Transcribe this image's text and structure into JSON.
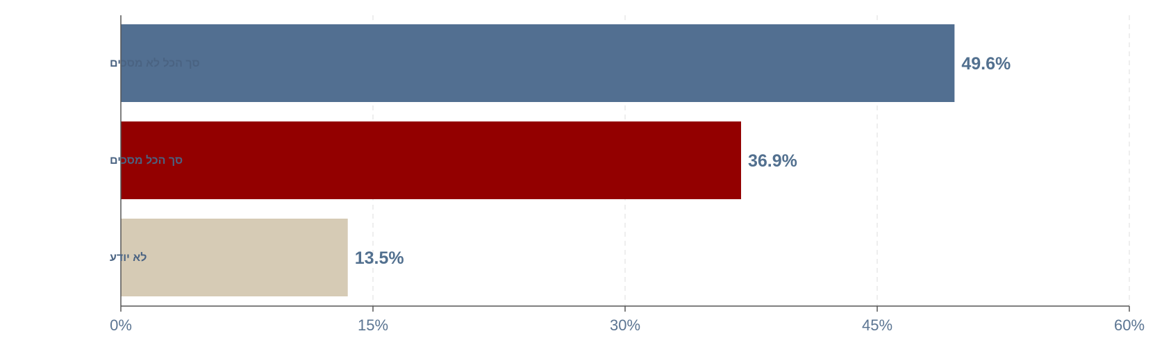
{
  "chart_data": {
    "type": "bar",
    "orientation": "horizontal",
    "categories": [
      "סך הכל לא מסכים",
      "סך הכל מסכים",
      "לא יודע"
    ],
    "values": [
      49.6,
      36.9,
      13.5
    ],
    "value_labels": [
      "49.6%",
      "36.9%",
      "13.5%"
    ],
    "colors": [
      "#526f91",
      "#930000",
      "#d6cbb5"
    ],
    "xlim": [
      0,
      60
    ],
    "xticks": [
      0,
      15,
      30,
      45,
      60
    ],
    "xtick_labels": [
      "0%",
      "15%",
      "30%",
      "45%",
      "60%"
    ],
    "grid": "vertical dashed",
    "title": "",
    "xlabel": "",
    "ylabel": ""
  }
}
